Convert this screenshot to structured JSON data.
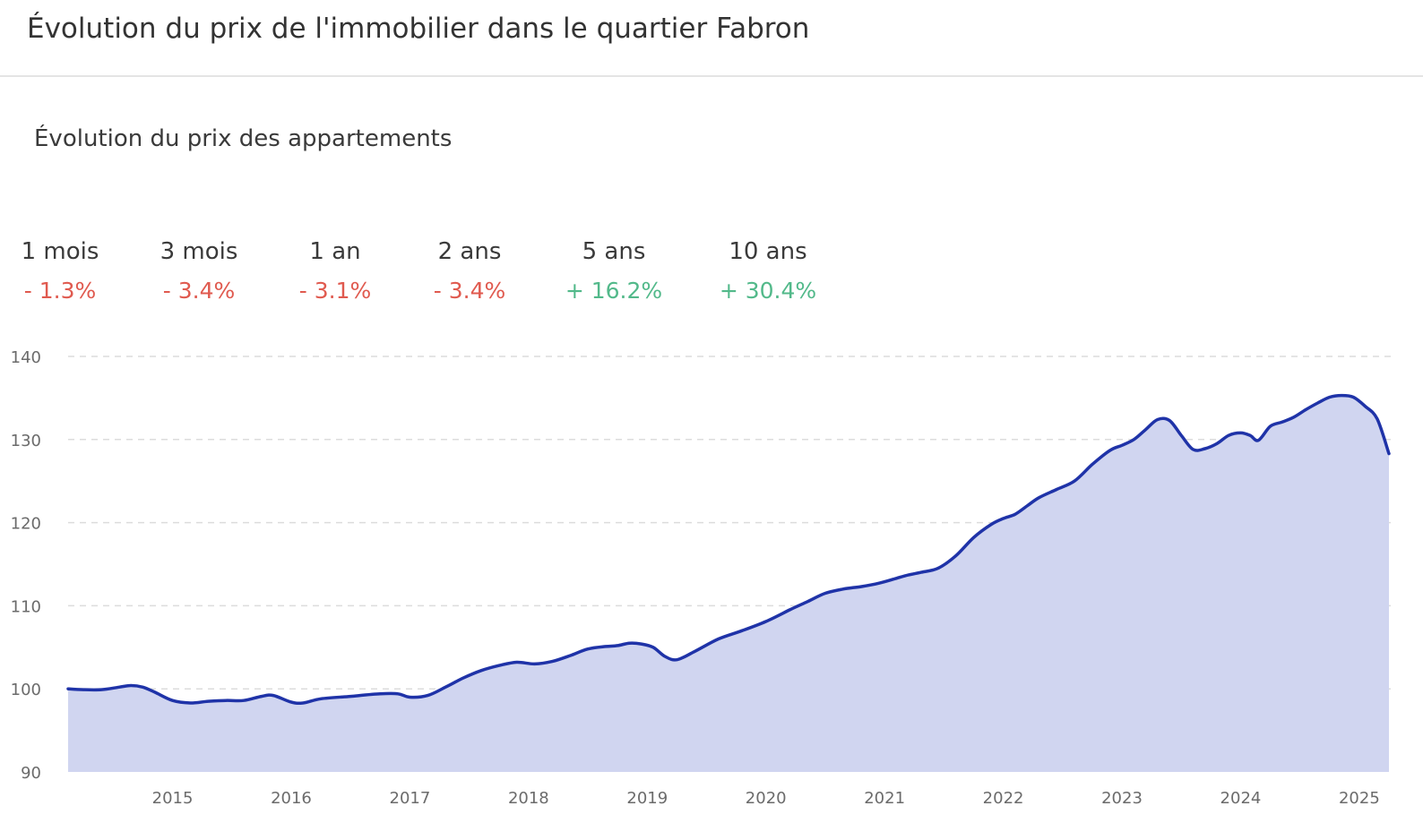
{
  "header": {
    "title": "Évolution du prix de l'immobilier dans le quartier Fabron"
  },
  "section": {
    "title": "Évolution du prix des appartements"
  },
  "stats": [
    {
      "period": "1 mois",
      "value": "- 1.3%",
      "trend": "negative"
    },
    {
      "period": "3 mois",
      "value": "- 3.4%",
      "trend": "negative"
    },
    {
      "period": "1 an",
      "value": "- 3.1%",
      "trend": "negative"
    },
    {
      "period": "2 ans",
      "value": "- 3.4%",
      "trend": "negative"
    },
    {
      "period": "5 ans",
      "value": "+ 16.2%",
      "trend": "positive"
    },
    {
      "period": "10 ans",
      "value": "+ 30.4%",
      "trend": "positive"
    }
  ],
  "colors": {
    "negative": "#e05a4f",
    "positive": "#52b98a",
    "line": "#1f33a8",
    "area": "#d0d5f0",
    "grid": "#dcdcdc"
  },
  "chart_data": {
    "type": "area",
    "title": "",
    "xlabel": "",
    "ylabel": "",
    "ylim": [
      90,
      140
    ],
    "yticks": [
      90,
      100,
      110,
      120,
      130,
      140
    ],
    "xlim": [
      2014.12,
      2025.25
    ],
    "xticks": [
      "2015",
      "2016",
      "2017",
      "2018",
      "2019",
      "2020",
      "2021",
      "2022",
      "2023",
      "2024",
      "2025"
    ],
    "grid": "horizontal dashed",
    "legend": "none",
    "series": [
      {
        "x": [
          2014.12,
          2014.25,
          2014.4,
          2014.55,
          2014.65,
          2014.75,
          2014.85,
          2015.0,
          2015.15,
          2015.3,
          2015.45,
          2015.6,
          2015.75,
          2015.85,
          2016.0,
          2016.1,
          2016.25,
          2016.5,
          2016.75,
          2016.9,
          2017.0,
          2017.15,
          2017.3,
          2017.45,
          2017.6,
          2017.75,
          2017.9,
          2018.05,
          2018.2,
          2018.35,
          2018.5,
          2018.65,
          2018.75,
          2018.85,
          2018.95,
          2019.05,
          2019.15,
          2019.25,
          2019.4,
          2019.6,
          2019.8,
          2020.0,
          2020.2,
          2020.35,
          2020.5,
          2020.65,
          2020.8,
          2020.95,
          2021.1,
          2021.2,
          2021.3,
          2021.45,
          2021.6,
          2021.75,
          2021.9,
          2022.0,
          2022.1,
          2022.2,
          2022.3,
          2022.45,
          2022.6,
          2022.75,
          2022.9,
          2023.0,
          2023.1,
          2023.2,
          2023.3,
          2023.4,
          2023.5,
          2023.6,
          2023.7,
          2023.8,
          2023.9,
          2024.0,
          2024.08,
          2024.15,
          2024.25,
          2024.35,
          2024.45,
          2024.55,
          2024.65,
          2024.75,
          2024.85,
          2024.95,
          2025.05,
          2025.15,
          2025.25
        ],
        "values": [
          100.0,
          99.9,
          99.9,
          100.2,
          100.4,
          100.2,
          99.6,
          98.6,
          98.3,
          98.5,
          98.6,
          98.6,
          99.1,
          99.2,
          98.4,
          98.3,
          98.8,
          99.1,
          99.4,
          99.4,
          99.0,
          99.2,
          100.2,
          101.3,
          102.2,
          102.8,
          103.2,
          103.0,
          103.3,
          104.0,
          104.8,
          105.1,
          105.2,
          105.5,
          105.4,
          105.0,
          103.9,
          103.5,
          104.5,
          106.0,
          107.0,
          108.1,
          109.5,
          110.5,
          111.5,
          112.0,
          112.3,
          112.7,
          113.3,
          113.7,
          114.0,
          114.5,
          116.0,
          118.2,
          119.8,
          120.5,
          121.0,
          122.0,
          123.0,
          124.0,
          125.0,
          127.0,
          128.7,
          129.3,
          130.0,
          131.2,
          132.4,
          132.3,
          130.5,
          128.8,
          128.9,
          129.5,
          130.5,
          130.8,
          130.5,
          129.9,
          131.6,
          132.1,
          132.7,
          133.6,
          134.4,
          135.1,
          135.3,
          135.1,
          134.0,
          132.5,
          128.3
        ]
      }
    ]
  }
}
